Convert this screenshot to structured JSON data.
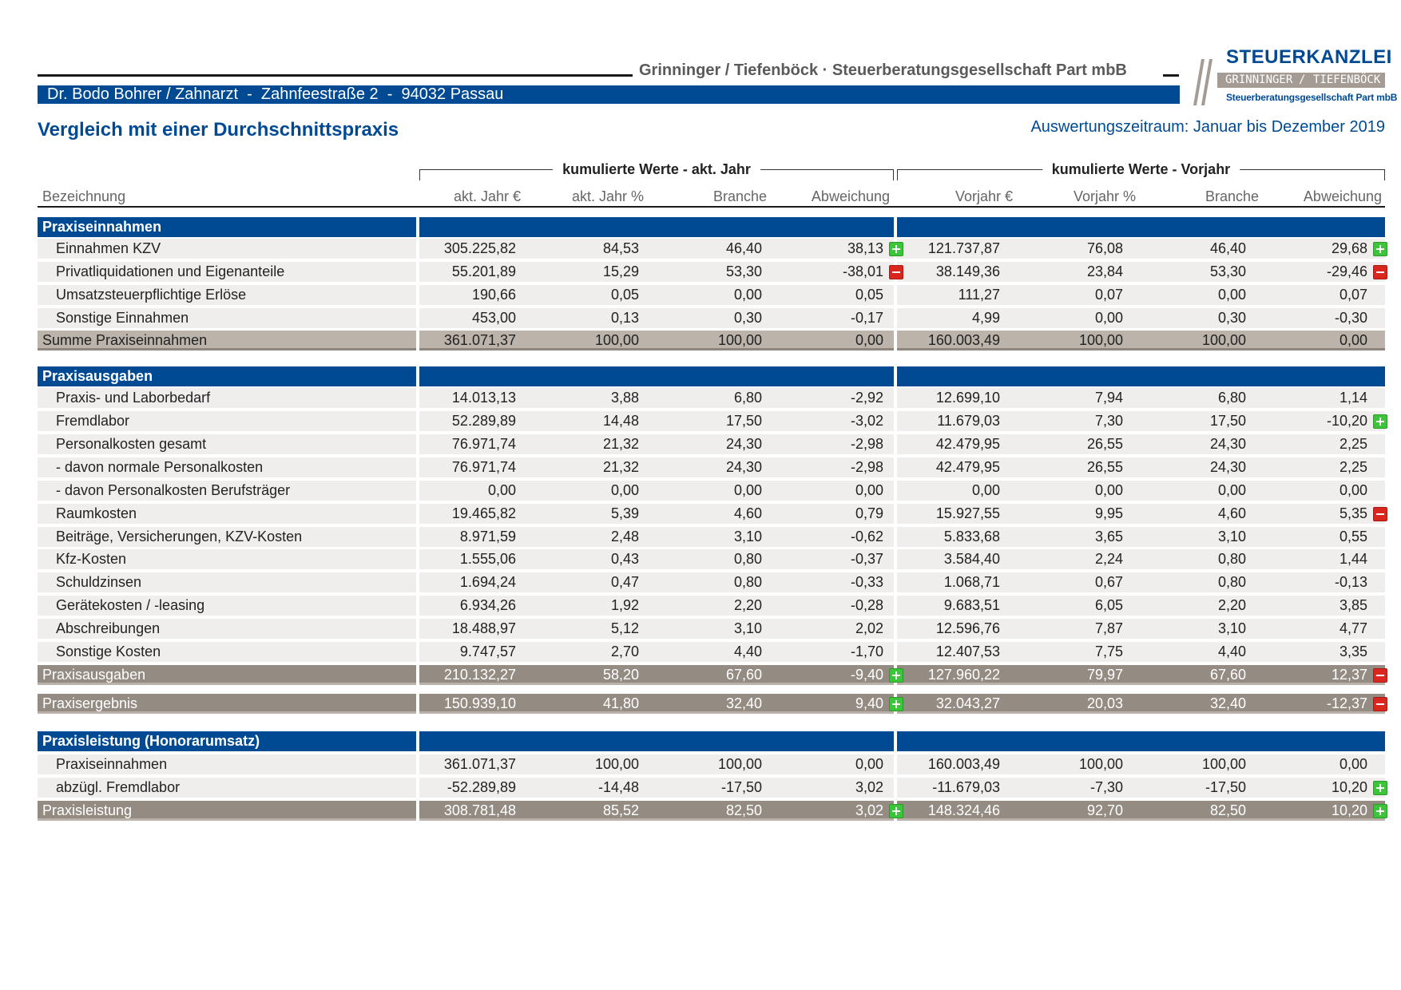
{
  "header": {
    "firm": "Grinninger / Tiefenböck · Steuerberatungsgesellschaft Part mbB",
    "client": "Dr. Bodo Bohrer / Zahnarzt  -  Zahnfeestraße 2  -  94032 Passau",
    "title": "Vergleich mit einer Durchschnittspraxis",
    "period": "Auswertungszeitraum: Januar bis Dezember 2019"
  },
  "logo": {
    "word": "STEUERKANZLEI",
    "band_left": "GRINNINGER",
    "band_right": "TIEFENBÖCK",
    "sub": "Steuerberatungsgesellschaft Part mbB"
  },
  "groups": {
    "current": "kumulierte Werte - akt. Jahr",
    "previous": "kumulierte Werte - Vorjahr"
  },
  "columns": {
    "label": "Bezeichnung",
    "cur_eur": "akt. Jahr €",
    "cur_pct": "akt. Jahr %",
    "cur_branch": "Branche",
    "cur_dev": "Abweichung",
    "prev_eur": "Vorjahr €",
    "prev_pct": "Vorjahr %",
    "prev_branch": "Branche",
    "prev_dev": "Abweichung"
  },
  "colors": {
    "section": "#004a94",
    "positive": "#3cc43a",
    "negative": "#d9261f"
  },
  "rows": [
    {
      "type": "section",
      "label": "Praxiseinnahmen"
    },
    {
      "type": "data",
      "label": "Einnahmen KZV",
      "v": [
        "305.225,82",
        "84,53",
        "46,40",
        "38,13",
        "121.737,87",
        "76,08",
        "46,40",
        "29,68"
      ],
      "b": [
        "plus",
        "plus"
      ]
    },
    {
      "type": "data",
      "label": "Privatliquidationen und Eigenanteile",
      "v": [
        "55.201,89",
        "15,29",
        "53,30",
        "-38,01",
        "38.149,36",
        "23,84",
        "53,30",
        "-29,46"
      ],
      "b": [
        "minus",
        "minus"
      ]
    },
    {
      "type": "data",
      "label": "Umsatzsteuerpflichtige Erlöse",
      "v": [
        "190,66",
        "0,05",
        "0,00",
        "0,05",
        "111,27",
        "0,07",
        "0,00",
        "0,07"
      ],
      "b": [
        "",
        ""
      ]
    },
    {
      "type": "data",
      "label": "Sonstige Einnahmen",
      "v": [
        "453,00",
        "0,13",
        "0,30",
        "-0,17",
        "4,99",
        "0,00",
        "0,30",
        "-0,30"
      ],
      "b": [
        "",
        ""
      ]
    },
    {
      "type": "sum-light",
      "label": "Summe Praxiseinnahmen",
      "v": [
        "361.071,37",
        "100,00",
        "100,00",
        "0,00",
        "160.003,49",
        "100,00",
        "100,00",
        "0,00"
      ],
      "b": [
        "",
        ""
      ]
    },
    {
      "type": "section",
      "label": "Praxisausgaben"
    },
    {
      "type": "data",
      "label": "Praxis- und Laborbedarf",
      "v": [
        "14.013,13",
        "3,88",
        "6,80",
        "-2,92",
        "12.699,10",
        "7,94",
        "6,80",
        "1,14"
      ],
      "b": [
        "",
        ""
      ]
    },
    {
      "type": "data",
      "label": "Fremdlabor",
      "v": [
        "52.289,89",
        "14,48",
        "17,50",
        "-3,02",
        "11.679,03",
        "7,30",
        "17,50",
        "-10,20"
      ],
      "b": [
        "",
        "plus"
      ]
    },
    {
      "type": "data",
      "label": "Personalkosten gesamt",
      "v": [
        "76.971,74",
        "21,32",
        "24,30",
        "-2,98",
        "42.479,95",
        "26,55",
        "24,30",
        "2,25"
      ],
      "b": [
        "",
        ""
      ]
    },
    {
      "type": "data",
      "label": "- davon normale Personalkosten",
      "v": [
        "76.971,74",
        "21,32",
        "24,30",
        "-2,98",
        "42.479,95",
        "26,55",
        "24,30",
        "2,25"
      ],
      "b": [
        "",
        ""
      ]
    },
    {
      "type": "data",
      "label": "- davon Personalkosten Berufsträger",
      "v": [
        "0,00",
        "0,00",
        "0,00",
        "0,00",
        "0,00",
        "0,00",
        "0,00",
        "0,00"
      ],
      "b": [
        "",
        ""
      ]
    },
    {
      "type": "data",
      "label": "Raumkosten",
      "v": [
        "19.465,82",
        "5,39",
        "4,60",
        "0,79",
        "15.927,55",
        "9,95",
        "4,60",
        "5,35"
      ],
      "b": [
        "",
        "minus"
      ]
    },
    {
      "type": "data",
      "label": "Beiträge, Versicherungen, KZV-Kosten",
      "v": [
        "8.971,59",
        "2,48",
        "3,10",
        "-0,62",
        "5.833,68",
        "3,65",
        "3,10",
        "0,55"
      ],
      "b": [
        "",
        ""
      ]
    },
    {
      "type": "data",
      "label": "Kfz-Kosten",
      "v": [
        "1.555,06",
        "0,43",
        "0,80",
        "-0,37",
        "3.584,40",
        "2,24",
        "0,80",
        "1,44"
      ],
      "b": [
        "",
        ""
      ]
    },
    {
      "type": "data",
      "label": "Schuldzinsen",
      "v": [
        "1.694,24",
        "0,47",
        "0,80",
        "-0,33",
        "1.068,71",
        "0,67",
        "0,80",
        "-0,13"
      ],
      "b": [
        "",
        ""
      ]
    },
    {
      "type": "data",
      "label": "Gerätekosten / -leasing",
      "v": [
        "6.934,26",
        "1,92",
        "2,20",
        "-0,28",
        "9.683,51",
        "6,05",
        "2,20",
        "3,85"
      ],
      "b": [
        "",
        ""
      ]
    },
    {
      "type": "data",
      "label": "Abschreibungen",
      "v": [
        "18.488,97",
        "5,12",
        "3,10",
        "2,02",
        "12.596,76",
        "7,87",
        "3,10",
        "4,77"
      ],
      "b": [
        "",
        ""
      ]
    },
    {
      "type": "data",
      "label": "Sonstige Kosten",
      "v": [
        "9.747,57",
        "2,70",
        "4,40",
        "-1,70",
        "12.407,53",
        "7,75",
        "4,40",
        "3,35"
      ],
      "b": [
        "",
        ""
      ]
    },
    {
      "type": "sum-dark",
      "label": "Praxisausgaben",
      "v": [
        "210.132,27",
        "58,20",
        "67,60",
        "-9,40",
        "127.960,22",
        "79,97",
        "67,60",
        "12,37"
      ],
      "b": [
        "plus",
        "minus"
      ]
    },
    {
      "type": "sum-dark",
      "label": "Praxisergebnis",
      "v": [
        "150.939,10",
        "41,80",
        "32,40",
        "9,40",
        "32.043,27",
        "20,03",
        "32,40",
        "-12,37"
      ],
      "b": [
        "plus",
        "minus"
      ]
    },
    {
      "type": "section",
      "label": "Praxisleistung (Honorarumsatz)"
    },
    {
      "type": "data",
      "label": "Praxiseinnahmen",
      "v": [
        "361.071,37",
        "100,00",
        "100,00",
        "0,00",
        "160.003,49",
        "100,00",
        "100,00",
        "0,00"
      ],
      "b": [
        "",
        ""
      ]
    },
    {
      "type": "data",
      "label": "abzügl. Fremdlabor",
      "v": [
        "-52.289,89",
        "-14,48",
        "-17,50",
        "3,02",
        "-11.679,03",
        "-7,30",
        "-17,50",
        "10,20"
      ],
      "b": [
        "",
        "plus"
      ]
    },
    {
      "type": "sum-dark",
      "label": "Praxisleistung",
      "v": [
        "308.781,48",
        "85,52",
        "82,50",
        "3,02",
        "148.324,46",
        "92,70",
        "82,50",
        "10,20"
      ],
      "b": [
        "plus",
        "plus"
      ]
    }
  ]
}
